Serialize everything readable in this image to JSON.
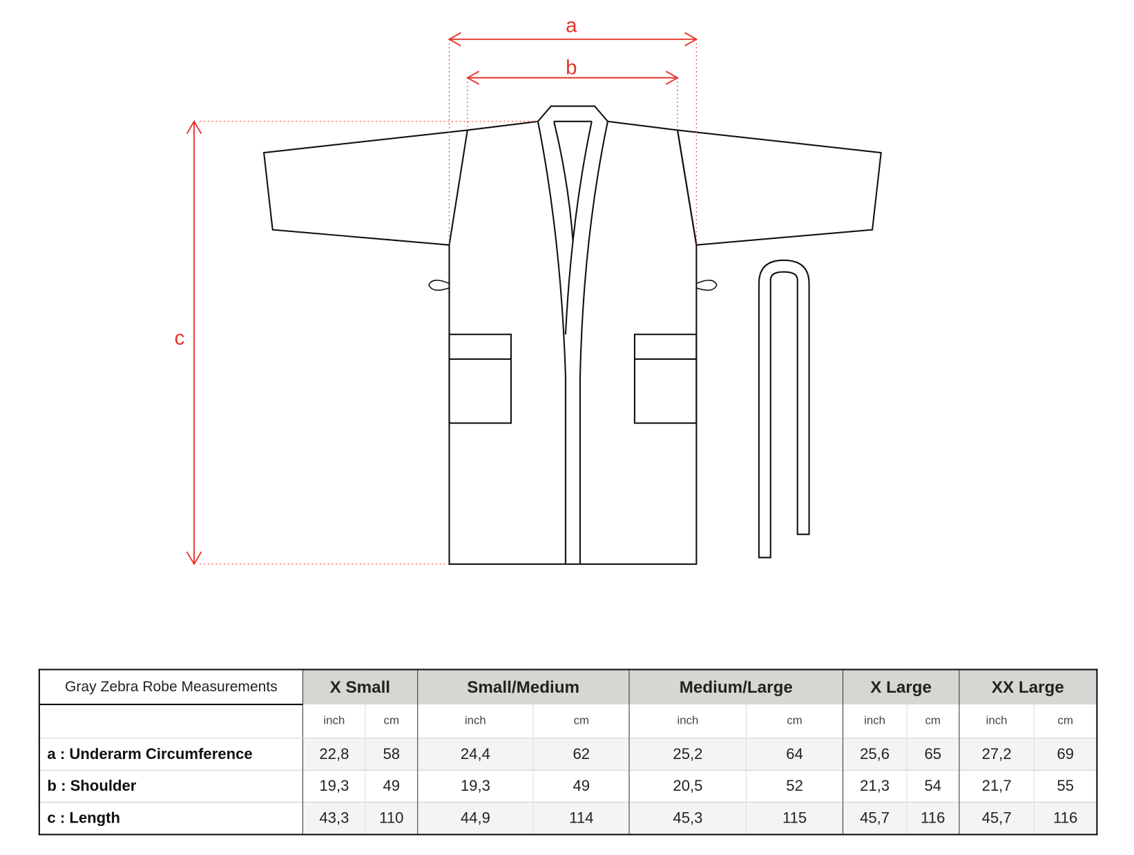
{
  "diagram": {
    "labels": {
      "a": "a",
      "b": "b",
      "c": "c"
    },
    "dimension_color": "#e8332a",
    "outline_color": "#111111"
  },
  "table": {
    "title": "Gray Zebra Robe Measurements",
    "sizes": [
      "X Small",
      "Small/Medium",
      "Medium/Large",
      "X Large",
      "XX Large"
    ],
    "units": [
      "inch",
      "cm"
    ],
    "header_color": "#d6d6d2",
    "rows": [
      {
        "label": "a : Underarm Circumference",
        "values": [
          "22,8",
          "58",
          "24,4",
          "62",
          "25,2",
          "64",
          "25,6",
          "65",
          "27,2",
          "69"
        ]
      },
      {
        "label": "b : Shoulder",
        "values": [
          "19,3",
          "49",
          "19,3",
          "49",
          "20,5",
          "52",
          "21,3",
          "54",
          "21,7",
          "55"
        ]
      },
      {
        "label": "c : Length",
        "values": [
          "43,3",
          "110",
          "44,9",
          "114",
          "45,3",
          "115",
          "45,7",
          "116",
          "45,7",
          "116"
        ]
      }
    ]
  }
}
